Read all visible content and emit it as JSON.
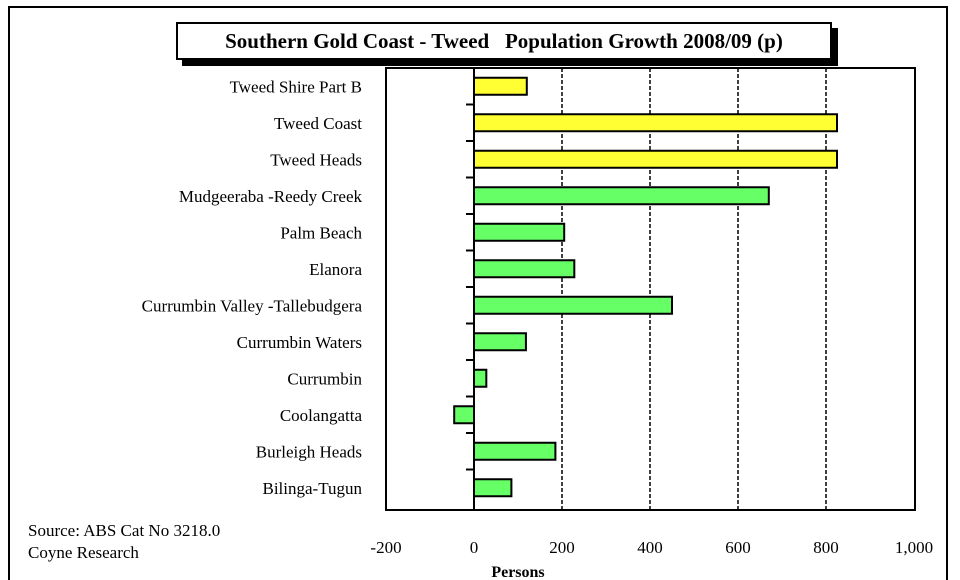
{
  "chart_data": {
    "type": "bar",
    "orientation": "horizontal",
    "title": "Southern Gold Coast - Tweed   Population Growth 2008/09 (p)",
    "xlabel": "Persons",
    "ylabel": "",
    "xlim": [
      -200,
      1000
    ],
    "xticks": [
      -200,
      0,
      200,
      400,
      600,
      800,
      1000
    ],
    "xtick_labels": [
      "-200",
      "0",
      "200",
      "400",
      "600",
      "800",
      "1,000"
    ],
    "grid": "vertical dashed at major x ticks",
    "categories": [
      "Tweed Shire Part B",
      "Tweed Coast",
      "Tweed Heads",
      "Mudgeeraba -Reedy Creek",
      "Palm Beach",
      "Elanora",
      "Currumbin Valley -Tallebudgera",
      "Currumbin Waters",
      "Currumbin",
      "Coolangatta",
      "Burleigh Heads",
      "Bilinga-Tugun"
    ],
    "values": [
      120,
      825,
      825,
      670,
      205,
      228,
      450,
      118,
      28,
      -45,
      185,
      85
    ],
    "bar_colors": [
      "#ffff33",
      "#ffff33",
      "#ffff33",
      "#66ff66",
      "#66ff66",
      "#66ff66",
      "#66ff66",
      "#66ff66",
      "#66ff66",
      "#66ff66",
      "#66ff66",
      "#66ff66"
    ]
  },
  "footer": {
    "source_line1": "Source: ABS Cat No 3218.0",
    "source_line2": "Coyne Research"
  }
}
